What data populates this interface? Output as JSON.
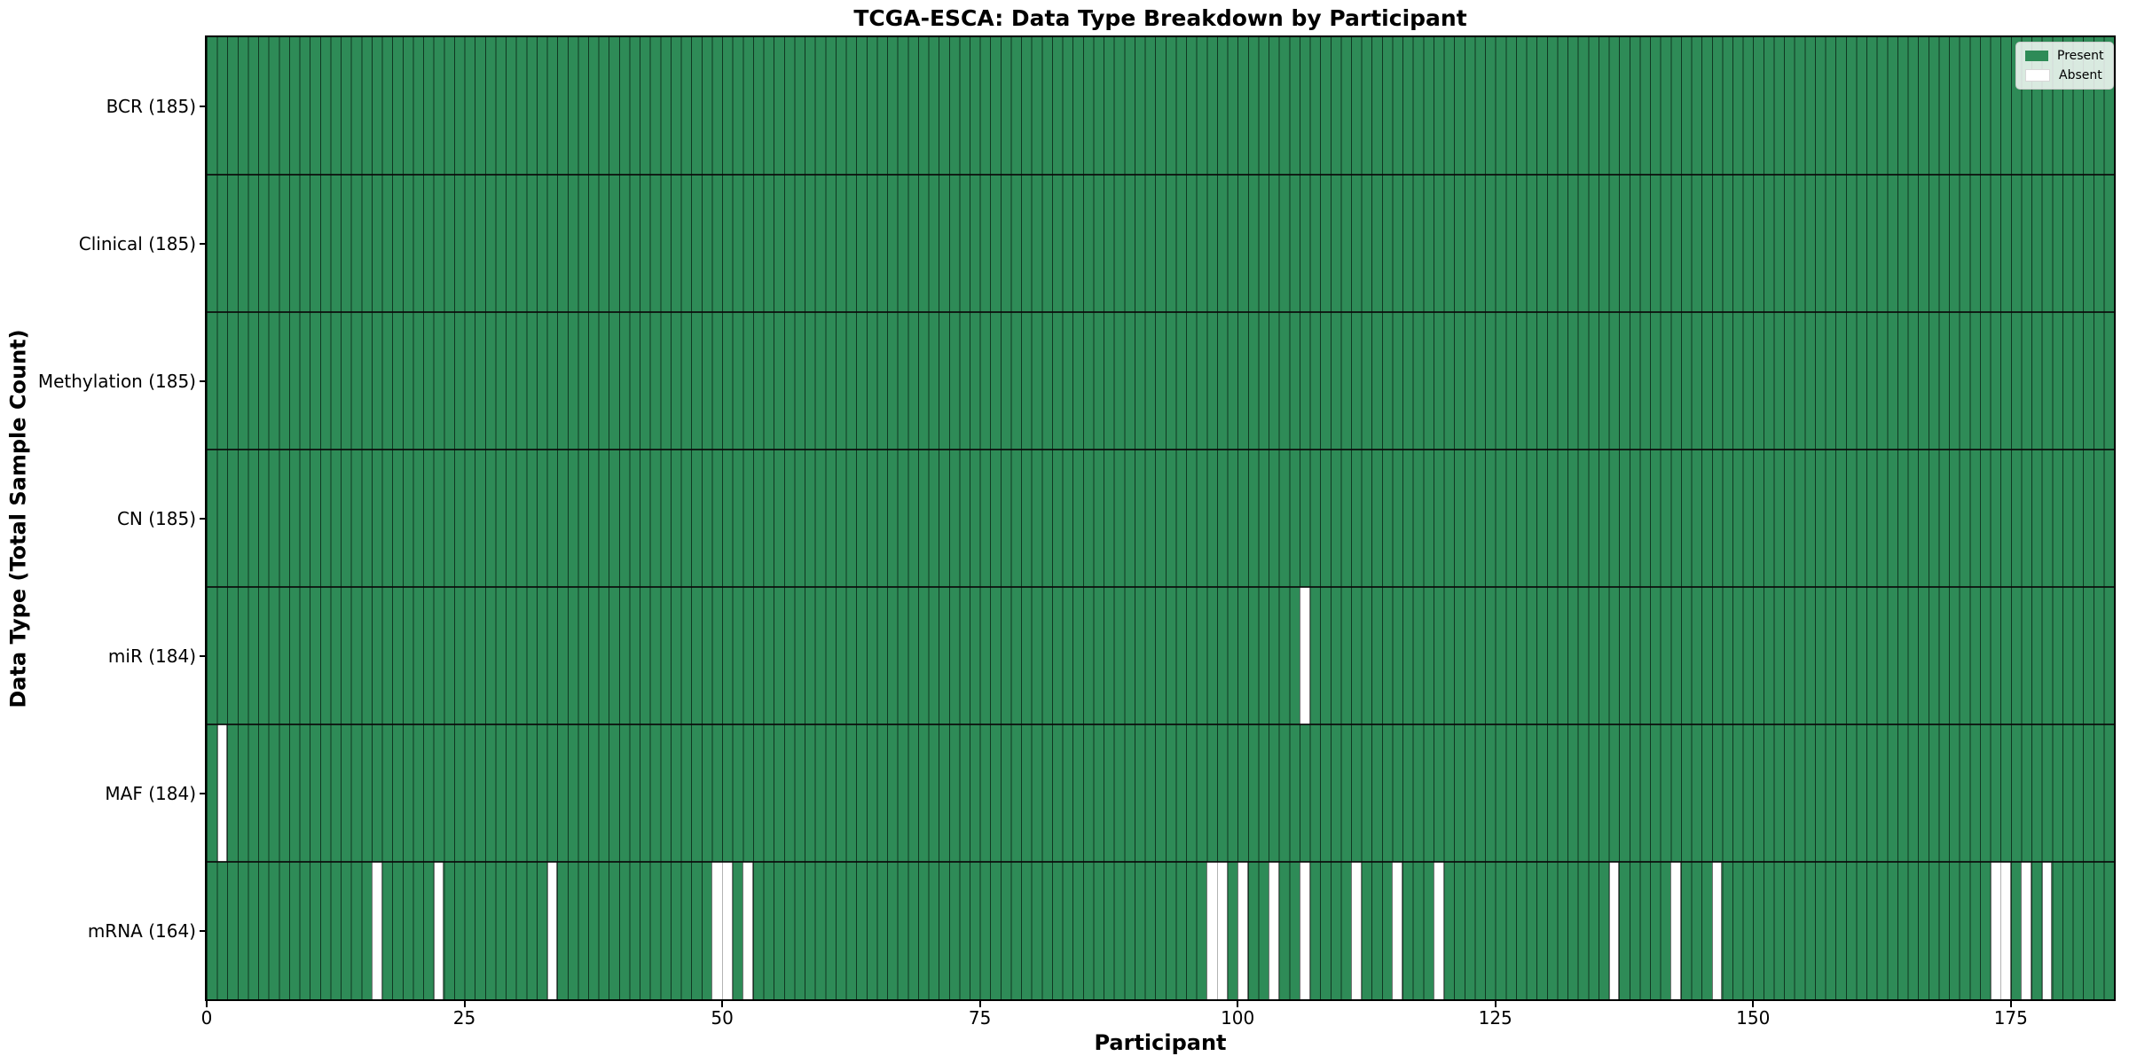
{
  "chart_data": {
    "type": "heatmap",
    "title": "TCGA-ESCA: Data Type Breakdown by Participant",
    "xlabel": "Participant",
    "ylabel": "Data Type (Total Sample Count)",
    "n_participants": 185,
    "xlim": [
      0,
      185
    ],
    "x_ticks": [
      0,
      25,
      50,
      75,
      100,
      125,
      150,
      175
    ],
    "legend_position": "upper right",
    "legend": [
      {
        "label": "Present",
        "color": "#2e8b57"
      },
      {
        "label": "Absent",
        "color": "#ffffff"
      }
    ],
    "colors": {
      "present": "#2e8b57",
      "absent": "#ffffff",
      "cell_edge": "#0a2214",
      "row_divider": "#0a0a0a"
    },
    "rows": [
      {
        "label": "BCR (185)",
        "data_type": "BCR",
        "present_count": 185,
        "absent_participants": []
      },
      {
        "label": "Clinical (185)",
        "data_type": "Clinical",
        "present_count": 185,
        "absent_participants": []
      },
      {
        "label": "Methylation (185)",
        "data_type": "Methylation",
        "present_count": 185,
        "absent_participants": []
      },
      {
        "label": "CN (185)",
        "data_type": "CN",
        "present_count": 185,
        "absent_participants": []
      },
      {
        "label": "miR (184)",
        "data_type": "miR",
        "present_count": 184,
        "absent_participants": [
          106
        ]
      },
      {
        "label": "MAF (184)",
        "data_type": "MAF",
        "present_count": 184,
        "absent_participants": [
          1
        ]
      },
      {
        "label": "mRNA (164)",
        "data_type": "mRNA",
        "present_count": 164,
        "absent_participants": [
          16,
          22,
          33,
          49,
          50,
          52,
          97,
          98,
          100,
          103,
          106,
          111,
          115,
          119,
          136,
          142,
          146,
          173,
          174,
          176,
          178
        ]
      }
    ]
  }
}
